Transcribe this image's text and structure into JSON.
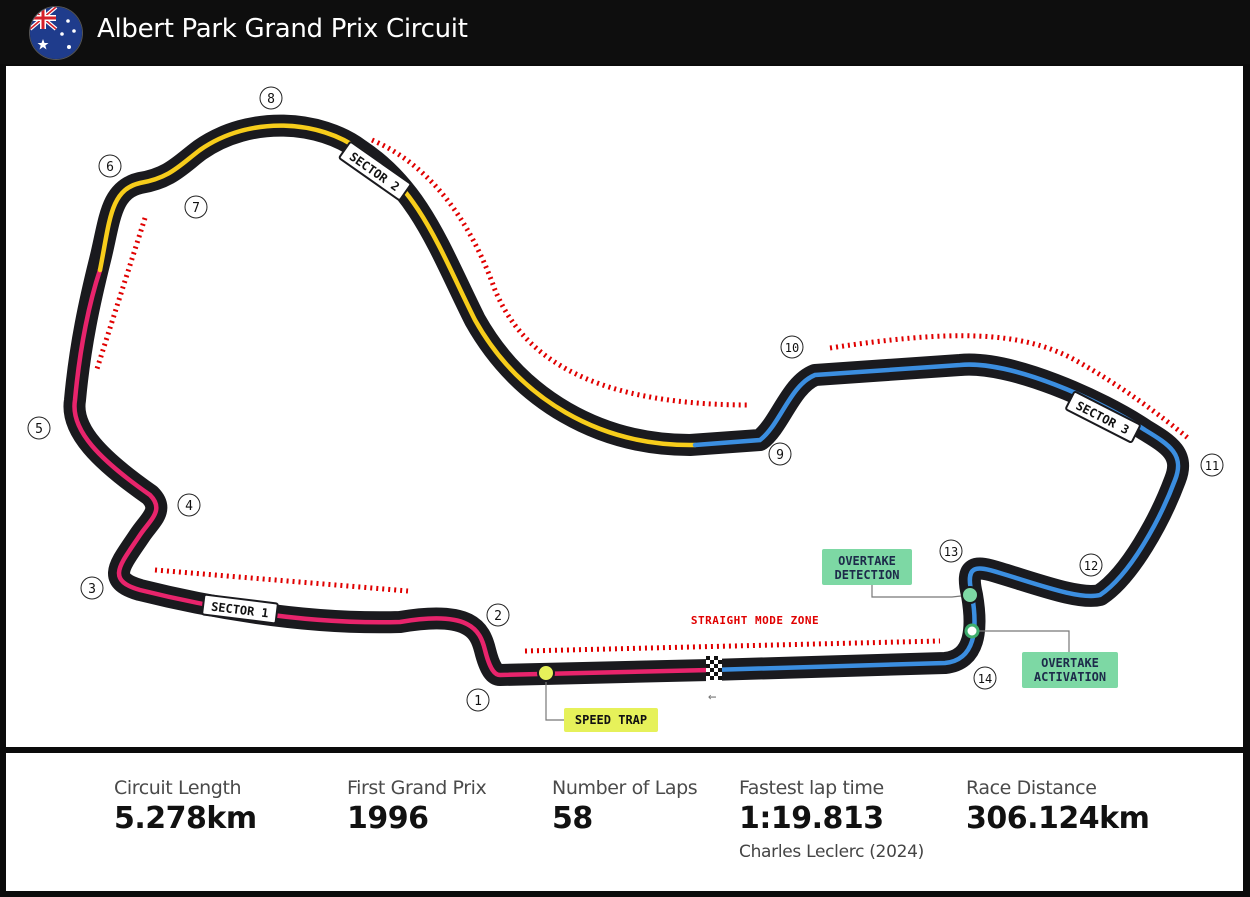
{
  "header": {
    "title": "Albert Park Grand Prix Circuit",
    "flag_icon": "australia-flag-icon"
  },
  "map": {
    "sectors": [
      {
        "label": "SECTOR 1",
        "color": "#e8246c"
      },
      {
        "label": "SECTOR 2",
        "color": "#f7cd1b"
      },
      {
        "label": "SECTOR 3",
        "color": "#3b8ee0"
      }
    ],
    "turns": [
      "1",
      "2",
      "3",
      "4",
      "5",
      "6",
      "7",
      "8",
      "9",
      "10",
      "11",
      "12",
      "13",
      "14"
    ],
    "labels": {
      "speed_trap": "SPEED TRAP",
      "overtake_detection": [
        "OVERTAKE",
        "DETECTION"
      ],
      "overtake_activation": [
        "OVERTAKE",
        "ACTIVATION"
      ],
      "straight_mode_zone": "STRAIGHT MODE ZONE"
    },
    "colors": {
      "track": "#1a1a1e",
      "straight_mode": "#e00000",
      "overtake_box": "#7dd8a4",
      "speed_trap_box": "#e6f15a"
    }
  },
  "stats": {
    "circuit_length": {
      "label": "Circuit Length",
      "value": "5.278km"
    },
    "first_grand_prix": {
      "label": "First Grand Prix",
      "value": "1996"
    },
    "number_of_laps": {
      "label": "Number of Laps",
      "value": "58"
    },
    "fastest_lap": {
      "label": "Fastest lap time",
      "value": "1:19.813",
      "holder": "Charles Leclerc (2024)"
    },
    "race_distance": {
      "label": "Race Distance",
      "value": "306.124km"
    }
  }
}
